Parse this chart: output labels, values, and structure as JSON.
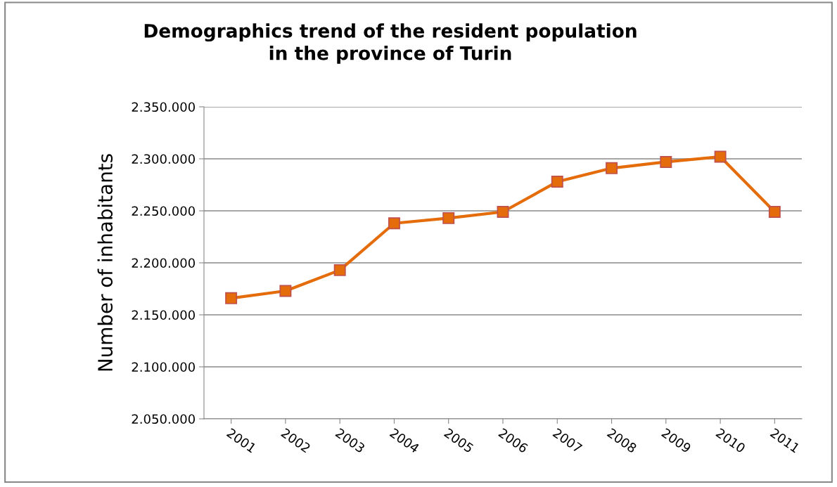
{
  "chart_data": {
    "type": "line",
    "title": "Demographics trend of the resident population\nin the province of Turin",
    "ylabel": "Number of inhabitants",
    "categories": [
      "2001",
      "2002",
      "2003",
      "2004",
      "2005",
      "2006",
      "2007",
      "2008",
      "2009",
      "2010",
      "2011"
    ],
    "series": [
      {
        "color": "#e46c0a",
        "values": [
          2166000,
          2173000,
          2193000,
          2238000,
          2243000,
          2249000,
          2278000,
          2291000,
          2297000,
          2302000,
          2249000
        ]
      }
    ],
    "ylim": [
      2050000,
      2350000
    ],
    "yticks": [
      {
        "value": 2050000,
        "label": "2.050.000"
      },
      {
        "value": 2100000,
        "label": "2.100.000"
      },
      {
        "value": 2150000,
        "label": "2.150.000"
      },
      {
        "value": 2200000,
        "label": "2.200.000"
      },
      {
        "value": 2250000,
        "label": "2.250.000"
      },
      {
        "value": 2300000,
        "label": "2.300.000"
      },
      {
        "value": 2350000,
        "label": "2.350.000"
      }
    ],
    "grid": "y",
    "marker": "square",
    "line_style": "solid"
  }
}
